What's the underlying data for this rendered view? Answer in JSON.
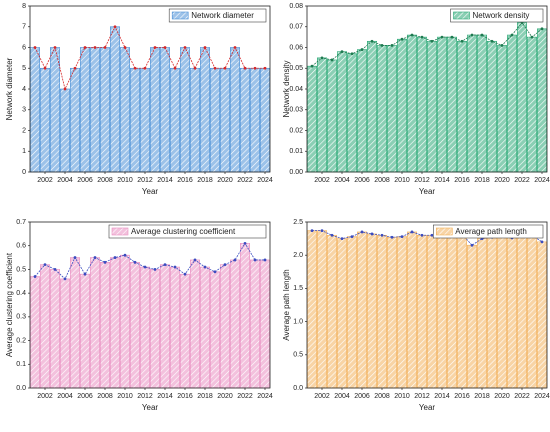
{
  "chart_data": [
    {
      "type": "bar",
      "xlabel": "Year",
      "ylabel": "Network diameter",
      "categories": [
        null,
        "2002",
        null,
        "2004",
        null,
        "2006",
        null,
        "2008",
        null,
        "2010",
        null,
        "2012",
        null,
        "2014",
        null,
        "2016",
        null,
        "2018",
        null,
        "2020",
        null,
        "2022",
        null,
        "2024"
      ],
      "series": [
        {
          "name": "Network diameter",
          "color": "#4a8fd6",
          "values": [
            6,
            5,
            6,
            4,
            5,
            6,
            6,
            6,
            7,
            6,
            5,
            5,
            6,
            6,
            5,
            6,
            5,
            6,
            5,
            5,
            6,
            5,
            5,
            5
          ]
        }
      ],
      "line_color": "#d62728",
      "legend": "upper right",
      "ylim": [
        0,
        8
      ],
      "yticks": [
        0,
        1,
        2,
        3,
        4,
        5,
        6,
        7,
        8
      ]
    },
    {
      "type": "bar",
      "xlabel": "Year",
      "ylabel": "Network density",
      "categories": [
        null,
        "2002",
        null,
        "2004",
        null,
        "2006",
        null,
        "2008",
        null,
        "2010",
        null,
        "2012",
        null,
        "2014",
        null,
        "2016",
        null,
        "2018",
        null,
        "2020",
        null,
        "2022",
        null,
        "2024"
      ],
      "series": [
        {
          "name": "Network density",
          "color": "#2aa876",
          "values": [
            0.051,
            0.055,
            0.054,
            0.058,
            0.057,
            0.059,
            0.063,
            0.061,
            0.061,
            0.064,
            0.066,
            0.065,
            0.063,
            0.065,
            0.065,
            0.063,
            0.066,
            0.066,
            0.063,
            0.061,
            0.066,
            0.072,
            0.065,
            0.069
          ]
        }
      ],
      "line_color": "#1f7a50",
      "legend": "upper right",
      "ylim": [
        0,
        0.08
      ],
      "yticks": [
        {
          "value": 0,
          "label": "0.00"
        },
        {
          "value": 0.01,
          "label": "0.01"
        },
        {
          "value": 0.02,
          "label": "0.02"
        },
        {
          "value": 0.03,
          "label": "0.03"
        },
        {
          "value": 0.04,
          "label": "0.04"
        },
        {
          "value": 0.05,
          "label": "0.05"
        },
        {
          "value": 0.06,
          "label": "0.06"
        },
        {
          "value": 0.07,
          "label": "0.07"
        },
        {
          "value": 0.08,
          "label": "0.08"
        }
      ]
    },
    {
      "type": "bar",
      "xlabel": "Year",
      "ylabel": "Average clustering coefficient",
      "categories": [
        null,
        "2002",
        null,
        "2004",
        null,
        "2006",
        null,
        "2008",
        null,
        "2010",
        null,
        "2012",
        null,
        "2014",
        null,
        "2016",
        null,
        "2018",
        null,
        "2020",
        null,
        "2022",
        null,
        "2024"
      ],
      "series": [
        {
          "name": "Average clustering coefficient",
          "color": "#e98ec0",
          "values": [
            0.47,
            0.52,
            0.5,
            0.46,
            0.55,
            0.48,
            0.55,
            0.53,
            0.55,
            0.56,
            0.53,
            0.51,
            0.5,
            0.52,
            0.51,
            0.48,
            0.54,
            0.51,
            0.49,
            0.52,
            0.54,
            0.61,
            0.54,
            0.54
          ]
        }
      ],
      "line_color": "#3b4cc0",
      "legend": "upper right",
      "ylim": [
        0,
        0.7
      ],
      "yticks": [
        {
          "value": 0,
          "label": "0.0"
        },
        0.1,
        0.2,
        0.3,
        0.4,
        0.5,
        0.6,
        0.7
      ]
    },
    {
      "type": "bar",
      "xlabel": "Year",
      "ylabel": "Average path length",
      "categories": [
        null,
        "2002",
        null,
        "2004",
        null,
        "2006",
        null,
        "2008",
        null,
        "2010",
        null,
        "2012",
        null,
        "2014",
        null,
        "2016",
        null,
        "2018",
        null,
        "2020",
        null,
        "2022",
        null,
        "2024"
      ],
      "series": [
        {
          "name": "Average path length",
          "color": "#f2b15a",
          "values": [
            2.37,
            2.37,
            2.3,
            2.25,
            2.28,
            2.35,
            2.32,
            2.3,
            2.27,
            2.28,
            2.35,
            2.3,
            2.3,
            2.3,
            2.28,
            2.32,
            2.15,
            2.25,
            2.27,
            2.28,
            2.26,
            2.33,
            2.3,
            2.2
          ]
        }
      ],
      "line_color": "#3b4cc0",
      "legend": "upper right",
      "ylim": [
        0,
        2.5
      ],
      "yticks": [
        {
          "value": 0,
          "label": "0.0"
        },
        {
          "value": 0.5,
          "label": "0.5"
        },
        {
          "value": 1,
          "label": "1.0"
        },
        {
          "value": 1.5,
          "label": "1.5"
        },
        {
          "value": 2,
          "label": "2.0"
        },
        {
          "value": 2.5,
          "label": "2.5"
        }
      ]
    }
  ]
}
